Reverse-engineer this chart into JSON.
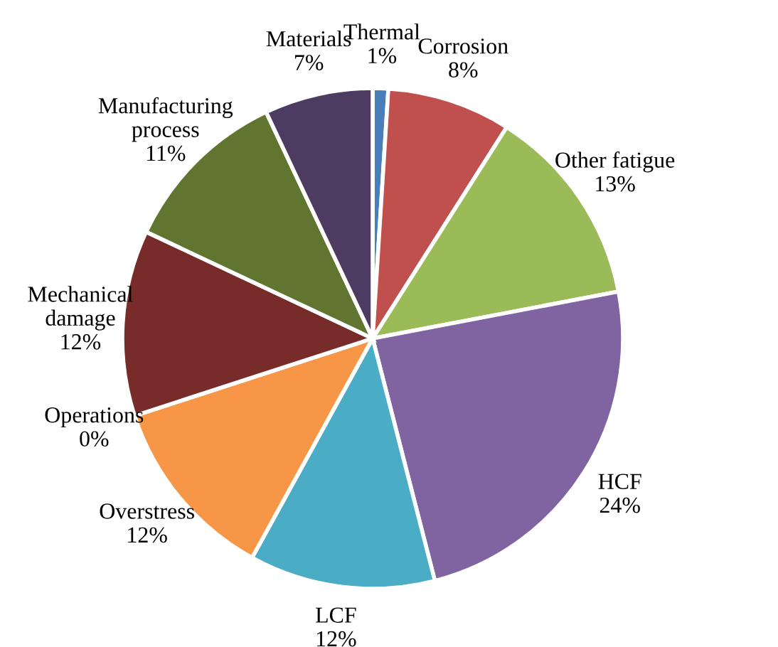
{
  "chart_data": {
    "type": "pie",
    "categories": [
      "Thermal",
      "Corrosion",
      "Other fatigue",
      "HCF",
      "LCF",
      "Overstress",
      "Operations",
      "Mechanical\ndamage",
      "Manufacturing\nprocess",
      "Materials"
    ],
    "values": [
      1,
      8,
      13,
      24,
      12,
      12,
      0,
      12,
      11,
      7
    ],
    "value_labels": [
      "1%",
      "8%",
      "13%",
      "24%",
      "12%",
      "12%",
      "0%",
      "12%",
      "11%",
      "7%"
    ],
    "colors": [
      "#4a7ebb",
      "#c0504d",
      "#9bbb59",
      "#8064a2",
      "#4bacc6",
      "#f79646",
      "#2c4d75",
      "#772c2a",
      "#5f7530",
      "#4d3b62"
    ],
    "legend": false
  }
}
